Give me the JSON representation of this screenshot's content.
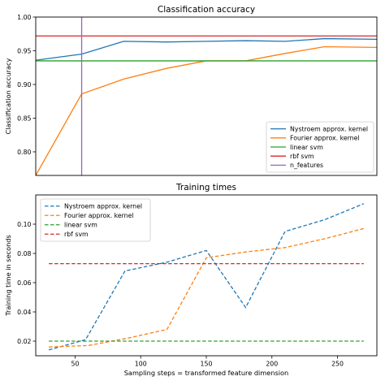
{
  "chart_data": [
    {
      "type": "line",
      "title": "Classification accuracy",
      "xlabel": "",
      "ylabel": "Classification accuracy",
      "xlim": [
        20,
        280
      ],
      "ylim": [
        0.765,
        1.0
      ],
      "xticks": [],
      "yticks": [
        0.8,
        0.85,
        0.9,
        0.95,
        1.0
      ],
      "ytick_labels": [
        "0.80",
        "0.85",
        "0.90",
        "0.95",
        "1.00"
      ],
      "legend_position": "lower-right",
      "grid": false,
      "series": [
        {
          "name": "Nystroem approx. kernel",
          "color": "#1f77b4",
          "style": "solid",
          "x": [
            20,
            55,
            87,
            120,
            150,
            180,
            210,
            240,
            280
          ],
          "y": [
            0.936,
            0.945,
            0.964,
            0.963,
            0.964,
            0.965,
            0.964,
            0.968,
            0.967
          ]
        },
        {
          "name": "Fourier approx. kernel",
          "color": "#ff7f0e",
          "style": "solid",
          "x": [
            20,
            55,
            87,
            120,
            150,
            180,
            210,
            240,
            280
          ],
          "y": [
            0.765,
            0.886,
            0.908,
            0.924,
            0.935,
            0.935,
            0.946,
            0.956,
            0.955
          ]
        },
        {
          "name": "linear svm",
          "color": "#2ca02c",
          "style": "solid",
          "x": [
            20,
            280
          ],
          "y": [
            0.935,
            0.935
          ]
        },
        {
          "name": "rbf svm",
          "color": "#d62728",
          "style": "solid",
          "x": [
            20,
            280
          ],
          "y": [
            0.972,
            0.972
          ]
        },
        {
          "name": "n_features",
          "color": "#9467bd",
          "style": "solid",
          "orientation": "vertical",
          "x": [
            55,
            55
          ],
          "y": [
            0.765,
            1.0
          ]
        }
      ]
    },
    {
      "type": "line",
      "title": "Training times",
      "xlabel": "Sampling steps = transformed feature dimension",
      "ylabel": "Training time in seconds",
      "xlim": [
        20,
        280
      ],
      "ylim": [
        0.01,
        0.12
      ],
      "xticks": [
        50,
        100,
        150,
        200,
        250
      ],
      "xtick_labels": [
        "50",
        "100",
        "150",
        "200",
        "250"
      ],
      "yticks": [
        0.02,
        0.04,
        0.06,
        0.08,
        0.1
      ],
      "ytick_labels": [
        "0.02",
        "0.04",
        "0.06",
        "0.08",
        "0.10"
      ],
      "legend_position": "upper-left",
      "grid": false,
      "series": [
        {
          "name": "Nystroem approx. kernel",
          "color": "#1f77b4",
          "style": "dashed",
          "x": [
            30,
            58,
            88,
            120,
            150,
            180,
            210,
            240,
            270
          ],
          "y": [
            0.014,
            0.021,
            0.068,
            0.074,
            0.082,
            0.043,
            0.095,
            0.103,
            0.114
          ]
        },
        {
          "name": "Fourier approx. kernel",
          "color": "#ff7f0e",
          "style": "dashed",
          "x": [
            30,
            60,
            90,
            120,
            150,
            180,
            210,
            240,
            270
          ],
          "y": [
            0.016,
            0.017,
            0.022,
            0.028,
            0.077,
            0.081,
            0.084,
            0.09,
            0.097
          ]
        },
        {
          "name": "linear svm",
          "color": "#2ca02c",
          "style": "dashed",
          "x": [
            30,
            270
          ],
          "y": [
            0.02,
            0.02
          ]
        },
        {
          "name": "rbf svm",
          "color": "#d62728",
          "style": "dashed",
          "x": [
            30,
            270
          ],
          "y": [
            0.073,
            0.073
          ]
        }
      ]
    }
  ]
}
